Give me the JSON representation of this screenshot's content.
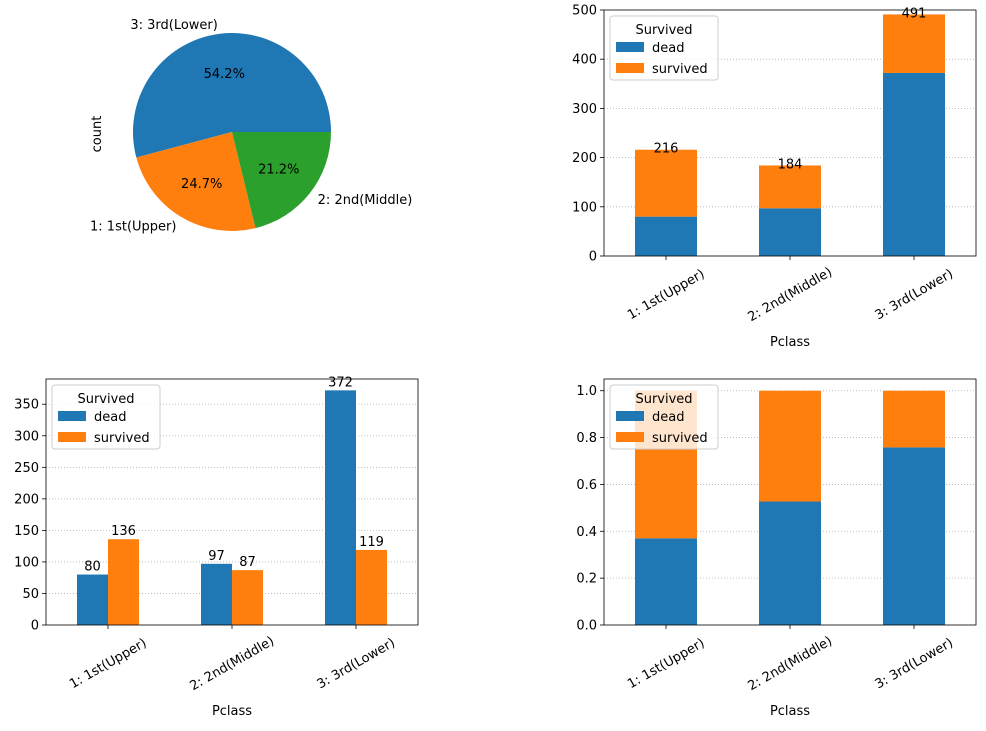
{
  "colors": {
    "dead": "#1f77b4",
    "survived": "#ff7f0e",
    "middle": "#2ca02c",
    "grid": "#b0b0b0"
  },
  "chart_data": [
    {
      "type": "pie",
      "ylabel": "count",
      "labels": [
        "3: 3rd(Lower)",
        "1: 1st(Upper)",
        "2: 2nd(Middle)"
      ],
      "values": [
        54.2,
        24.7,
        21.2
      ],
      "pct_labels": [
        "54.2%",
        "24.7%",
        "21.2%"
      ]
    },
    {
      "type": "bar",
      "stacked": true,
      "categories": [
        "1: 1st(Upper)",
        "2: 2nd(Middle)",
        "3: 3rd(Lower)"
      ],
      "xlabel": "Pclass",
      "ylim": [
        0,
        500
      ],
      "yticks": [
        "0",
        "100",
        "200",
        "300",
        "400",
        "500"
      ],
      "legend_title": "Survived",
      "legend_placement": "top-left",
      "series": [
        {
          "name": "dead",
          "values": [
            80,
            97,
            372
          ]
        },
        {
          "name": "survived",
          "values": [
            136,
            87,
            119
          ]
        }
      ],
      "total_labels": [
        "216",
        "184",
        "491"
      ],
      "grid": "y-dotted"
    },
    {
      "type": "bar",
      "stacked": false,
      "categories": [
        "1: 1st(Upper)",
        "2: 2nd(Middle)",
        "3: 3rd(Lower)"
      ],
      "xlabel": "Pclass",
      "ylim": [
        0,
        390
      ],
      "yticks": [
        "0",
        "50",
        "100",
        "150",
        "200",
        "250",
        "300",
        "350"
      ],
      "legend_title": "Survived",
      "legend_placement": "top-left",
      "series": [
        {
          "name": "dead",
          "values": [
            80,
            97,
            372
          ],
          "labels": [
            "80",
            "97",
            "372"
          ]
        },
        {
          "name": "survived",
          "values": [
            136,
            87,
            119
          ],
          "labels": [
            "136",
            "87",
            "119"
          ]
        }
      ],
      "grid": "y-dotted"
    },
    {
      "type": "bar",
      "stacked": true,
      "normalized": true,
      "categories": [
        "1: 1st(Upper)",
        "2: 2nd(Middle)",
        "3: 3rd(Lower)"
      ],
      "xlabel": "Pclass",
      "ylim": [
        0,
        1.05
      ],
      "yticks": [
        "0.0",
        "0.2",
        "0.4",
        "0.6",
        "0.8",
        "1.0"
      ],
      "legend_title": "Survived",
      "legend_placement": "top-left",
      "series": [
        {
          "name": "dead",
          "values": [
            0.37,
            0.527,
            0.758
          ]
        },
        {
          "name": "survived",
          "values": [
            0.63,
            0.473,
            0.242
          ]
        }
      ],
      "grid": "y-dotted"
    }
  ]
}
